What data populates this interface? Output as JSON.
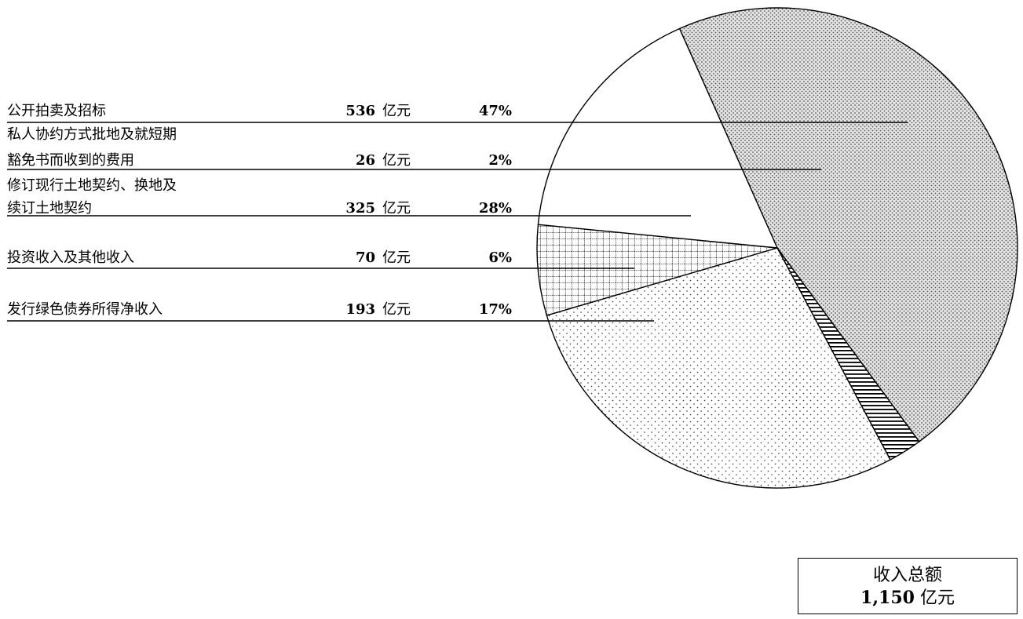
{
  "chart_data": {
    "type": "pie",
    "unit": "亿元",
    "slices": [
      {
        "label_lines": [
          "公开拍卖及招标"
        ],
        "value": 536,
        "percent": "47%",
        "pattern": "dense-dots"
      },
      {
        "label_lines": [
          "私人协约方式批地及就短期",
          "豁免书而收到的费用"
        ],
        "value": 26,
        "percent": "2%",
        "pattern": "horizontal-lines"
      },
      {
        "label_lines": [
          "修订现行土地契约、换地及",
          "续订土地契约"
        ],
        "value": 325,
        "percent": "28%",
        "pattern": "sparse-dots"
      },
      {
        "label_lines": [
          "投资收入及其他收入"
        ],
        "value": 70,
        "percent": "6%",
        "pattern": "grid"
      },
      {
        "label_lines": [
          "发行绿色债券所得净收入"
        ],
        "value": 193,
        "percent": "17%",
        "pattern": "none"
      }
    ],
    "total": {
      "label": "收入总额",
      "value": "1,150",
      "unit": "亿元"
    }
  }
}
